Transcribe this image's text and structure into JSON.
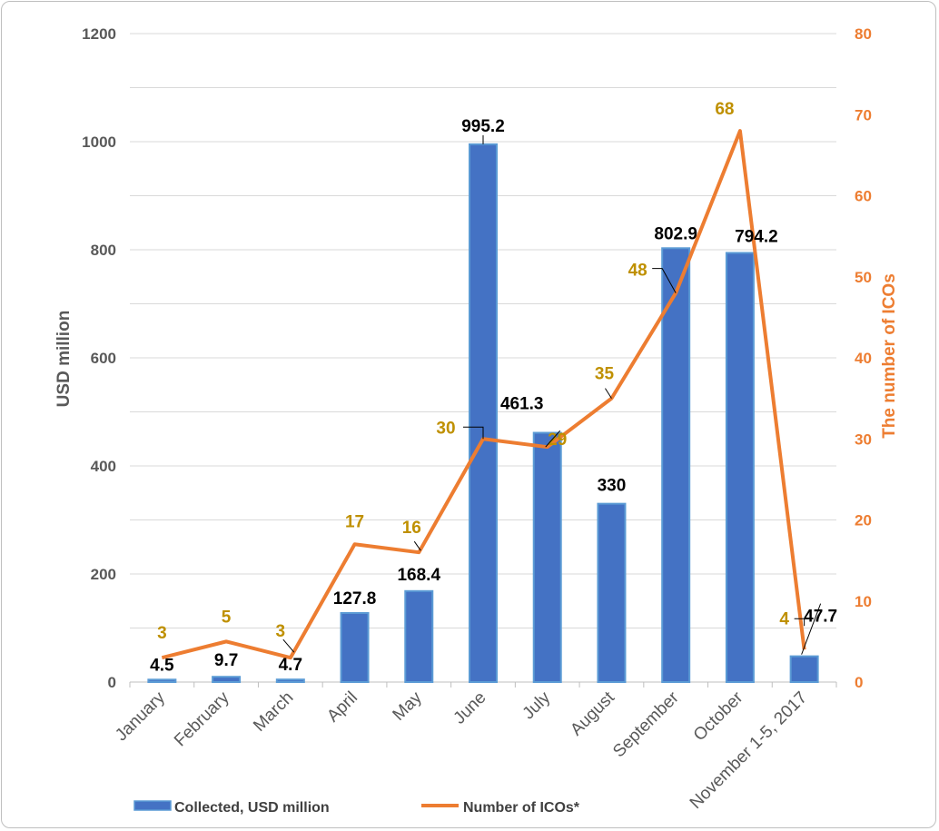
{
  "chart_data": {
    "type": "bar",
    "categories": [
      "January",
      "February",
      "March",
      "April",
      "May",
      "June",
      "July",
      "August",
      "September",
      "October",
      "November 1-5, 2017"
    ],
    "series": [
      {
        "name": "Collected, USD million",
        "type": "bar",
        "axis": "left",
        "values": [
          4.5,
          9.7,
          4.7,
          127.8,
          168.4,
          995.2,
          461.3,
          330,
          802.9,
          794.2,
          47.7
        ],
        "labels": [
          "4.5",
          "9.7",
          "4.7",
          "127.8",
          "168.4",
          "995.2",
          "461.3",
          "330",
          "802.9",
          "794.2",
          "47.7"
        ]
      },
      {
        "name": "Number of ICOs*",
        "type": "line",
        "axis": "right",
        "values": [
          3,
          5,
          3,
          17,
          16,
          30,
          29,
          35,
          48,
          68,
          4
        ],
        "labels": [
          "3",
          "5",
          "3",
          "17",
          "16",
          "30",
          "29",
          "35",
          "48",
          "68",
          "4"
        ]
      }
    ],
    "ylabel": "USD million",
    "y2label": "The number of ICOs",
    "ylim": [
      0,
      1200
    ],
    "y2lim": [
      0,
      80
    ],
    "yticks": [
      "0",
      "200",
      "400",
      "600",
      "800",
      "1000",
      "1200"
    ],
    "y2ticks": [
      "0",
      "10",
      "20",
      "30",
      "40",
      "50",
      "60",
      "70",
      "80"
    ],
    "grid": true,
    "legend_position": "bottom-left",
    "colors": {
      "bar": "#4472C4",
      "bar_border": "#5B9BD5",
      "line": "#ED7D31",
      "line_label": "#BF9000",
      "grid": "#d9d9d9",
      "axis_text": "#595959"
    }
  }
}
